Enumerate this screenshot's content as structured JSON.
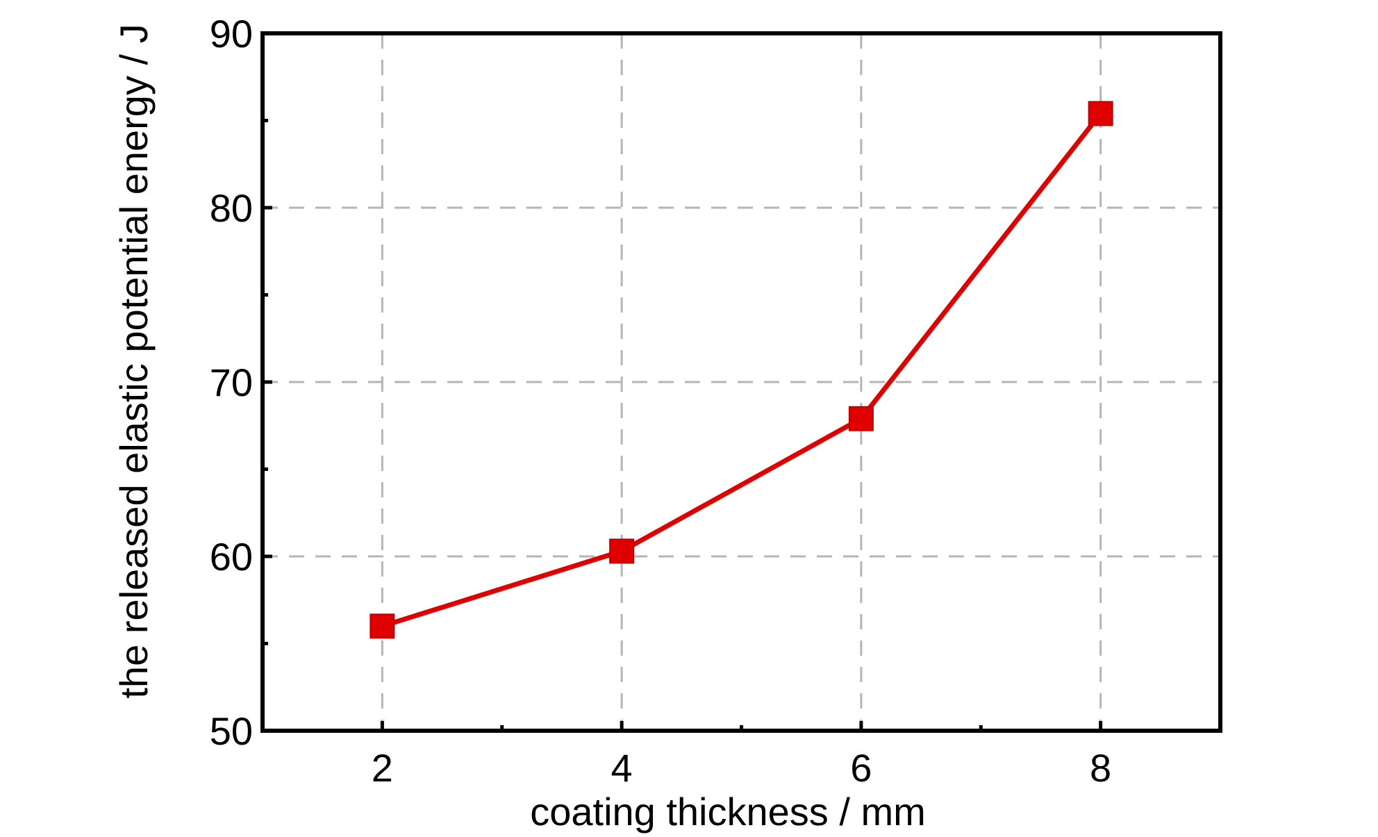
{
  "chart_data": {
    "type": "line",
    "xlabel": "coating thickness / mm",
    "ylabel": "the released elastic potential energy / J",
    "x": [
      2,
      4,
      6,
      8
    ],
    "x_ticks": [
      2,
      4,
      6,
      8
    ],
    "y_ticks": [
      50,
      60,
      70,
      80,
      90
    ],
    "xlim": [
      1,
      9
    ],
    "ylim": [
      50,
      90
    ],
    "grid": true,
    "series": [
      {
        "values": [
          56.0,
          60.3,
          67.9,
          85.4
        ],
        "color": "#e00000",
        "marker": "square"
      }
    ]
  }
}
